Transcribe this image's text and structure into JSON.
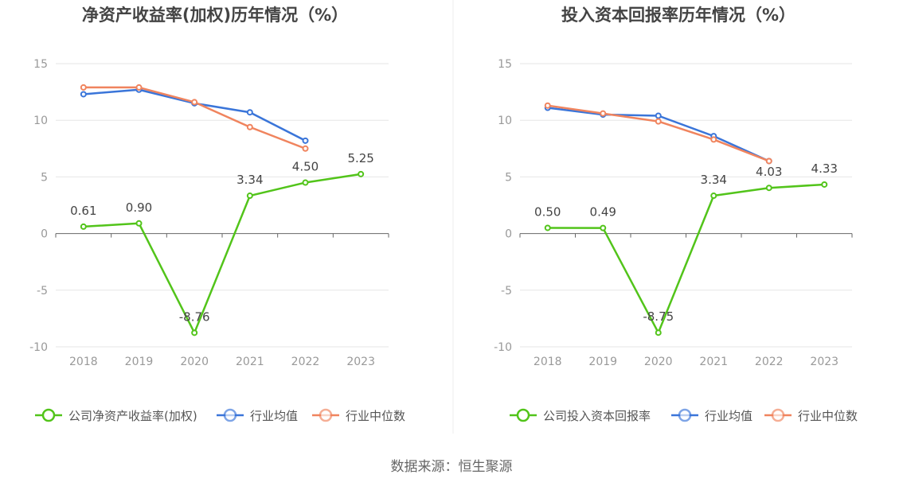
{
  "source": "数据来源：恒生聚源",
  "colors": {
    "company": "#52c41a",
    "industry_avg": "#3a75d9",
    "industry_median": "#f0845e",
    "axis": "#666666",
    "grid": "#e6e6e6",
    "tick": "#999999",
    "title": "#444444",
    "legend_text": "#555555",
    "label": "#444444"
  },
  "chart_data": [
    {
      "type": "line",
      "title": "净资产收益率(加权)历年情况（%）",
      "categories": [
        "2018",
        "2019",
        "2020",
        "2021",
        "2022",
        "2023"
      ],
      "ylim": [
        -10,
        15
      ],
      "yticks": [
        15,
        10,
        5,
        0,
        -5,
        -10
      ],
      "grid": true,
      "legend_position": "bottom",
      "series": [
        {
          "name": "公司净资产收益率(加权)",
          "key": "company",
          "values": [
            0.61,
            0.9,
            -8.76,
            3.34,
            4.5,
            5.25
          ],
          "labels": [
            "0.61",
            "0.90",
            "-8.76",
            "3.34",
            "4.50",
            "5.25"
          ]
        },
        {
          "name": "行业均值",
          "key": "industry_avg",
          "values": [
            12.3,
            12.7,
            11.5,
            10.7,
            8.2,
            null
          ]
        },
        {
          "name": "行业中位数",
          "key": "industry_median",
          "values": [
            12.9,
            12.9,
            11.6,
            9.4,
            7.5,
            null
          ]
        }
      ]
    },
    {
      "type": "line",
      "title": "投入资本回报率历年情况（%）",
      "categories": [
        "2018",
        "2019",
        "2020",
        "2021",
        "2022",
        "2023"
      ],
      "ylim": [
        -10,
        15
      ],
      "yticks": [
        15,
        10,
        5,
        0,
        -5,
        -10
      ],
      "grid": true,
      "legend_position": "bottom",
      "series": [
        {
          "name": "公司投入资本回报率",
          "key": "company",
          "values": [
            0.5,
            0.49,
            -8.75,
            3.34,
            4.03,
            4.33
          ],
          "labels": [
            "0.50",
            "0.49",
            "-8.75",
            "3.34",
            "4.03",
            "4.33"
          ]
        },
        {
          "name": "行业均值",
          "key": "industry_avg",
          "values": [
            11.1,
            10.5,
            10.4,
            8.6,
            6.4,
            null
          ]
        },
        {
          "name": "行业中位数",
          "key": "industry_median",
          "values": [
            11.3,
            10.6,
            9.9,
            8.3,
            6.4,
            null
          ]
        }
      ]
    }
  ]
}
